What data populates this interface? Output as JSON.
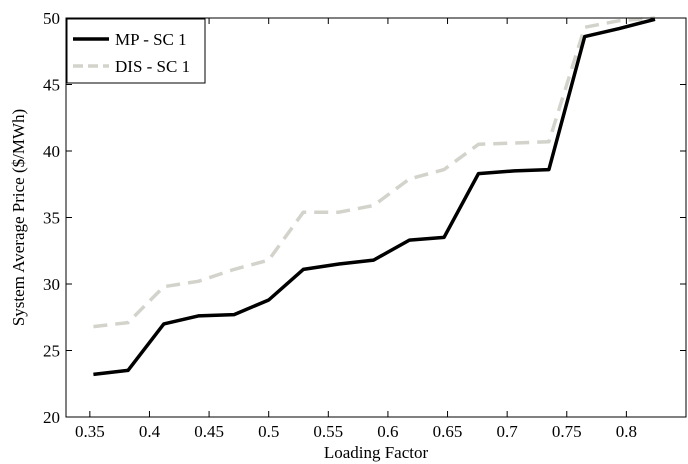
{
  "chart_data": {
    "type": "line",
    "title": "",
    "xlabel": "Loading Factor",
    "ylabel": "System Average Price ($/MWh)",
    "xlim": [
      0.33,
      0.85
    ],
    "ylim": [
      20,
      50
    ],
    "x_ticks": [
      "0.35",
      "0.4",
      "0.45",
      "0.5",
      "0.55",
      "0.6",
      "0.65",
      "0.7",
      "0.75",
      "0.8"
    ],
    "x_tick_values": [
      0.35,
      0.4,
      0.45,
      0.5,
      0.55,
      0.6,
      0.65,
      0.7,
      0.75,
      0.8
    ],
    "y_ticks": [
      "20",
      "25",
      "30",
      "35",
      "40",
      "45",
      "50"
    ],
    "y_tick_values": [
      20,
      25,
      30,
      35,
      40,
      45,
      50
    ],
    "legend_position": "top-left",
    "grid": false,
    "series": [
      {
        "name": "MP - SC 1",
        "color": "#000000",
        "style": "solid",
        "x": [
          0.353,
          0.382,
          0.412,
          0.441,
          0.471,
          0.5,
          0.529,
          0.559,
          0.588,
          0.618,
          0.647,
          0.676,
          0.706,
          0.735,
          0.765,
          0.794,
          0.824
        ],
        "y": [
          23.2,
          23.5,
          27.0,
          27.6,
          27.7,
          28.8,
          31.1,
          31.5,
          31.8,
          33.3,
          33.5,
          38.3,
          38.5,
          38.6,
          48.6,
          49.2,
          49.9
        ]
      },
      {
        "name": "DIS - SC 1",
        "color": "#d3d3cc",
        "style": "dashed",
        "x": [
          0.353,
          0.382,
          0.412,
          0.441,
          0.471,
          0.5,
          0.529,
          0.559,
          0.588,
          0.618,
          0.647,
          0.676,
          0.706,
          0.735,
          0.765,
          0.794,
          0.824
        ],
        "y": [
          26.8,
          27.1,
          29.8,
          30.2,
          31.1,
          31.8,
          35.4,
          35.4,
          35.9,
          37.9,
          38.6,
          40.5,
          40.6,
          40.7,
          49.3,
          49.8,
          50.0
        ]
      }
    ]
  }
}
